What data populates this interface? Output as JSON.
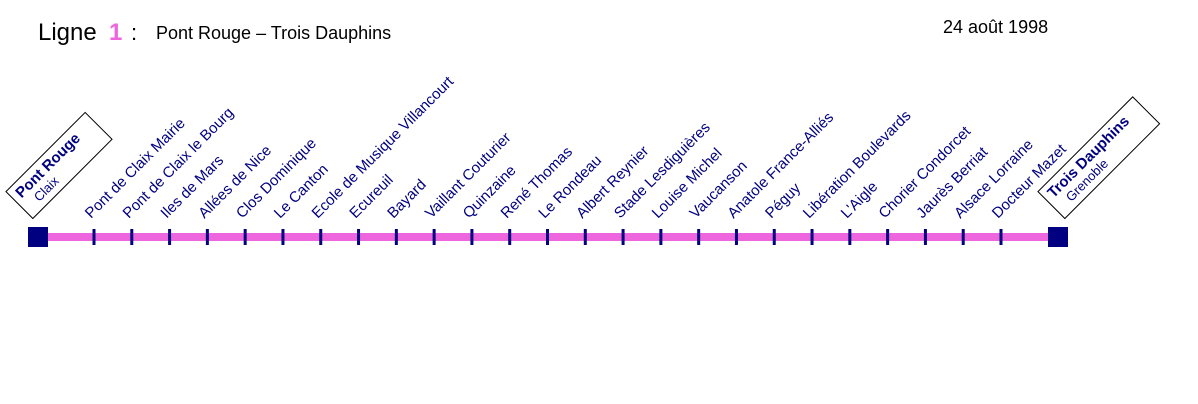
{
  "header": {
    "line_word": "Ligne",
    "line_number": "1",
    "separator": ":",
    "route": "Pont Rouge – Trois Dauphins",
    "date": "24 août 1998"
  },
  "terminals": [
    {
      "name": "Pont Rouge",
      "town": "Claix"
    },
    {
      "name": "Trois Dauphins",
      "town": "Grenoble"
    }
  ],
  "stations": [
    "Pont de Claix Mairie",
    "Pont de Claix le Bourg",
    "Iles de Mars",
    "Allées de Nice",
    "Clos Dominique",
    "Le Canton",
    "Ecole de Musique Villancourt",
    "Ecureuil",
    "Bayard",
    "Vaillant Couturier",
    "Quinzaine",
    "René Thomas",
    "Le Rondeau",
    "Albert Reynier",
    "Stade Lesdiguières",
    "Louise Michel",
    "Vaucanson",
    "Anatole France-Alliés",
    "Péguy",
    "Libération Boulevards",
    "L'Aigle",
    "Chorier Condorcet",
    "Jaurès Berriat",
    "Alsace Lorraine",
    "Docteur Mazet"
  ]
}
